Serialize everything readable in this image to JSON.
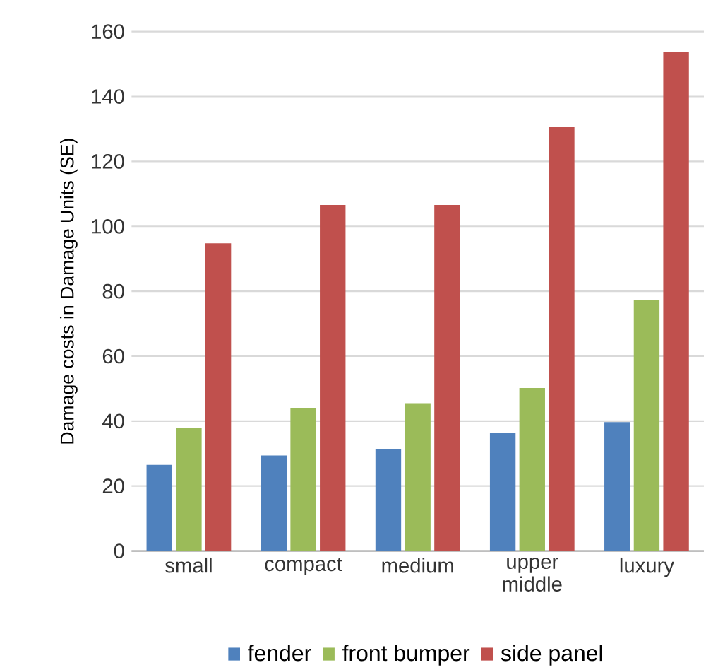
{
  "chart_data": {
    "type": "bar",
    "ylabel": "Damage costs in Damage Units (SE)",
    "categories": [
      "small",
      "compact",
      "medium",
      "upper middle",
      "luxury"
    ],
    "series": [
      {
        "name": "fender",
        "color": "#4f81bd",
        "values": [
          26.5,
          29.4,
          31.3,
          36.5,
          39.7
        ]
      },
      {
        "name": "front bumper",
        "color": "#9bbb59",
        "values": [
          37.8,
          44.1,
          45.5,
          50.2,
          77.4
        ]
      },
      {
        "name": "side panel",
        "color": "#c0504d",
        "values": [
          94.8,
          106.6,
          106.6,
          130.6,
          153.7
        ]
      }
    ],
    "ylim": [
      0,
      160
    ],
    "yticks": [
      0,
      20,
      40,
      60,
      80,
      100,
      120,
      140,
      160
    ],
    "grid": "y",
    "legend": "bottom"
  }
}
